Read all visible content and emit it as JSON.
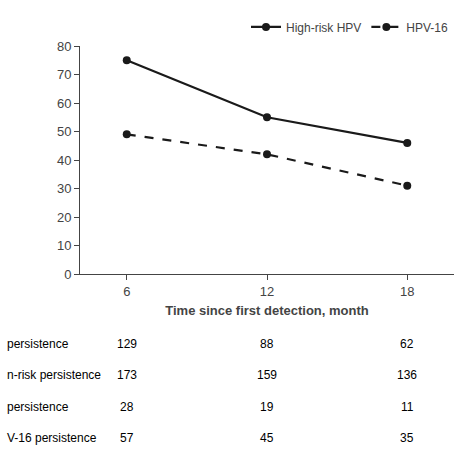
{
  "chart_data": {
    "type": "line",
    "x": [
      6,
      12,
      18
    ],
    "xlabel": "Time since first detection, month",
    "series": [
      {
        "name": "High-risk HPV",
        "color": "#1a1a1a",
        "values": [
          75,
          55,
          46
        ],
        "line_style": "solid",
        "marker": "circle"
      },
      {
        "name": "HPV-16",
        "color": "#1a1a1a",
        "values": [
          49,
          42,
          31
        ],
        "line_style": "dashed",
        "marker": "circle"
      }
    ],
    "xlim": [
      4,
      20
    ],
    "xticks": [
      6,
      12,
      18
    ],
    "ylim": [
      0,
      80
    ],
    "yticks": [
      0,
      10,
      20,
      30,
      40,
      50,
      60,
      70,
      80
    ],
    "grid": false,
    "legend": "upper right",
    "table_rows": [
      {
        "label": "persistence",
        "values": [
          129,
          88,
          62
        ]
      },
      {
        "label": "n-risk persistence",
        "values": [
          173,
          159,
          136
        ]
      },
      {
        "label": "persistence",
        "values": [
          28,
          19,
          11
        ]
      },
      {
        "label": "V-16 persistence",
        "values": [
          57,
          45,
          35
        ]
      }
    ]
  }
}
